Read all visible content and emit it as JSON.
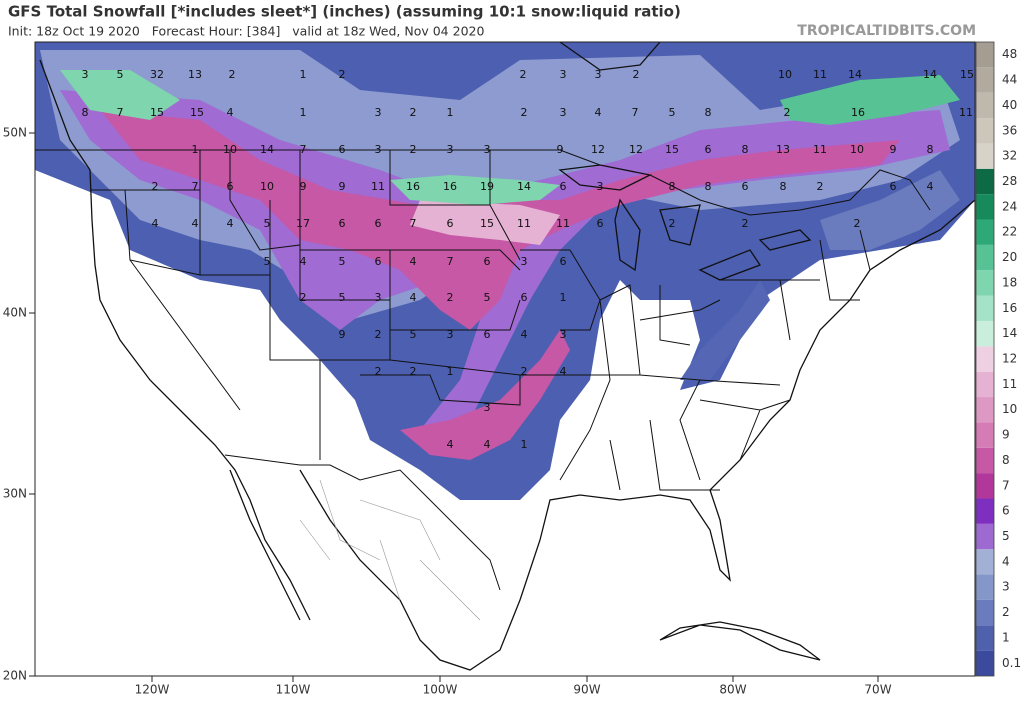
{
  "header": {
    "title": "GFS Total Snowfall [*includes sleet*] (inches) (assuming 10:1 snow:liquid ratio)",
    "subtitle": "Init: 18z Oct 19 2020   Forecast Hour: [384]   valid at 18z Wed, Nov 04 2020",
    "watermark": "TROPICALTIDBITS.COM"
  },
  "lat_ticks": [
    "50N",
    "40N",
    "30N",
    "20N"
  ],
  "lon_ticks": [
    "120W",
    "110W",
    "100W",
    "90W",
    "80W",
    "70W"
  ],
  "colorbar": {
    "levels": [
      0.1,
      1,
      2,
      3,
      4,
      5,
      6,
      7,
      8,
      9,
      10,
      11,
      12,
      14,
      16,
      18,
      20,
      22,
      24,
      28,
      32,
      36,
      40,
      44,
      48
    ],
    "colors": [
      "#3c4a9e",
      "#4f60ad",
      "#6a7cbd",
      "#8596c9",
      "#a3b0d6",
      "#9c6ad0",
      "#7e2fbf",
      "#b2379a",
      "#c658a6",
      "#d57bb6",
      "#de98c4",
      "#e6b2d3",
      "#efcfe2",
      "#c9eedc",
      "#a4e3c7",
      "#7fd5ae",
      "#57c394",
      "#2fa877",
      "#178a5c",
      "#0c6b45",
      "#d8d3c9",
      "#ccc6bb",
      "#bfb8ad",
      "#b2aa9f",
      "#a59d92"
    ]
  },
  "map_labels": [
    3,
    5,
    32,
    13,
    2,
    1,
    2,
    2,
    3,
    3,
    2,
    10,
    11,
    14,
    14,
    15,
    8,
    7,
    15,
    15,
    4,
    1,
    3,
    2,
    1,
    2,
    3,
    4,
    7,
    5,
    8,
    2,
    16,
    11,
    1,
    10,
    14,
    7,
    6,
    3,
    2,
    3,
    3,
    9,
    12,
    12,
    15,
    6,
    8,
    13,
    11,
    10,
    9,
    8,
    2,
    7,
    6,
    10,
    9,
    9,
    11,
    16,
    16,
    19,
    14,
    6,
    3,
    8,
    8,
    6,
    8,
    2,
    6,
    4,
    4,
    4,
    4,
    5,
    17,
    6,
    6,
    7,
    6,
    15,
    11,
    11,
    6,
    2,
    2,
    2,
    5,
    4,
    5,
    6,
    4,
    7,
    6,
    3,
    6,
    2,
    5,
    3,
    4,
    2,
    5,
    6,
    1,
    9,
    2,
    5,
    3,
    6,
    4,
    3,
    2,
    2,
    1,
    2,
    4,
    3,
    4,
    4,
    1
  ]
}
